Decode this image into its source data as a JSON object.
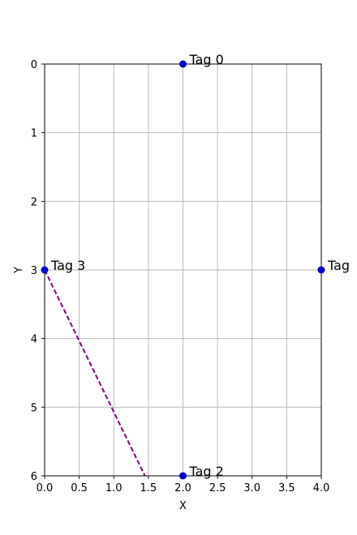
{
  "chart_data": {
    "type": "scatter",
    "xlabel": "X",
    "ylabel": "Y",
    "xlim": [
      0,
      4
    ],
    "ylim": [
      0,
      6
    ],
    "y_inverted": true,
    "grid": true,
    "x_ticks": [
      "0.0",
      "0.5",
      "1.0",
      "1.5",
      "2.0",
      "2.5",
      "3.0",
      "3.5",
      "4.0"
    ],
    "y_ticks": [
      "0",
      "1",
      "2",
      "3",
      "4",
      "5",
      "6"
    ],
    "points": [
      {
        "label": "Tag 0",
        "x": 2,
        "y": 0
      },
      {
        "label": "Tag",
        "x": 4,
        "y": 3
      },
      {
        "label": "Tag 2",
        "x": 2,
        "y": 6
      },
      {
        "label": "Tag 3",
        "x": 0,
        "y": 3
      }
    ],
    "point_color": "#0000cc",
    "line": {
      "style": "dashed",
      "color": "#800080",
      "x": [
        0,
        1.45
      ],
      "y": [
        3,
        6
      ]
    }
  }
}
